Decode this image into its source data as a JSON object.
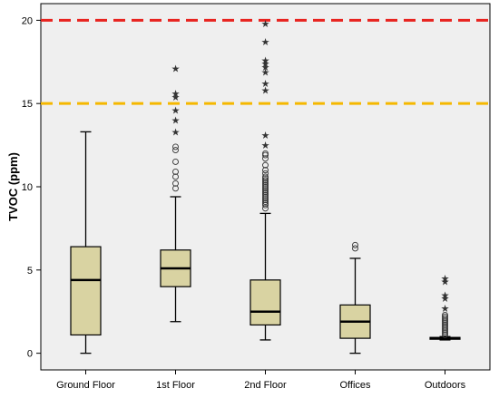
{
  "chart_data": {
    "type": "box",
    "title": "",
    "xlabel": "",
    "ylabel": "TVOC  (ppm)",
    "ylim": [
      -1,
      21
    ],
    "yticks": [
      0,
      5,
      10,
      15,
      20
    ],
    "grid": false,
    "plot_background": "#efefef",
    "box_fill": "#d9d3a2",
    "categories": [
      "Ground Floor",
      "1st Floor",
      "2nd Floor",
      "Offices",
      "Outdoors"
    ],
    "boxes": [
      {
        "name": "Ground Floor",
        "whisker_low": 0.0,
        "q1": 1.1,
        "median": 4.4,
        "q3": 6.4,
        "whisker_high": 13.3,
        "outliers": [],
        "extremes": []
      },
      {
        "name": "1st Floor",
        "whisker_low": 1.9,
        "q1": 4.0,
        "median": 5.1,
        "q3": 6.2,
        "whisker_high": 9.4,
        "outliers": [
          9.9,
          10.2,
          10.6,
          10.9,
          11.5,
          12.2,
          12.4
        ],
        "extremes": [
          13.3,
          14.0,
          14.6,
          15.4,
          15.6,
          17.1
        ]
      },
      {
        "name": "2nd Floor",
        "whisker_low": 0.8,
        "q1": 1.7,
        "median": 2.5,
        "q3": 4.4,
        "whisker_high": 8.4,
        "outliers": [
          8.7,
          8.9,
          9.0,
          9.1,
          9.2,
          9.3,
          9.4,
          9.5,
          9.6,
          9.7,
          9.8,
          9.9,
          10.0,
          10.1,
          10.2,
          10.3,
          10.4,
          10.5,
          10.6,
          10.8,
          11.0,
          11.3,
          11.7,
          11.9,
          12.0
        ],
        "extremes": [
          12.5,
          13.1,
          15.8,
          16.2,
          16.9,
          17.2,
          17.4,
          17.6,
          18.7,
          19.8
        ]
      },
      {
        "name": "Offices",
        "whisker_low": 0.0,
        "q1": 0.9,
        "median": 1.9,
        "q3": 2.9,
        "whisker_high": 5.7,
        "outliers": [
          6.3,
          6.5
        ],
        "extremes": []
      },
      {
        "name": "Outdoors",
        "whisker_low": 0.8,
        "q1": 0.85,
        "median": 0.9,
        "q3": 0.95,
        "whisker_high": 1.0,
        "outliers": [
          1.1,
          1.2,
          1.3,
          1.4,
          1.5,
          1.6,
          1.7,
          1.8,
          1.9,
          2.0,
          2.1,
          2.2,
          2.3
        ],
        "extremes": [
          2.7,
          3.3,
          3.5,
          4.3,
          4.5
        ]
      }
    ],
    "reference_lines": [
      {
        "y": 20,
        "color": "#e8231f",
        "style": "dashed"
      },
      {
        "y": 15,
        "color": "#f5b800",
        "style": "dashed"
      }
    ]
  }
}
